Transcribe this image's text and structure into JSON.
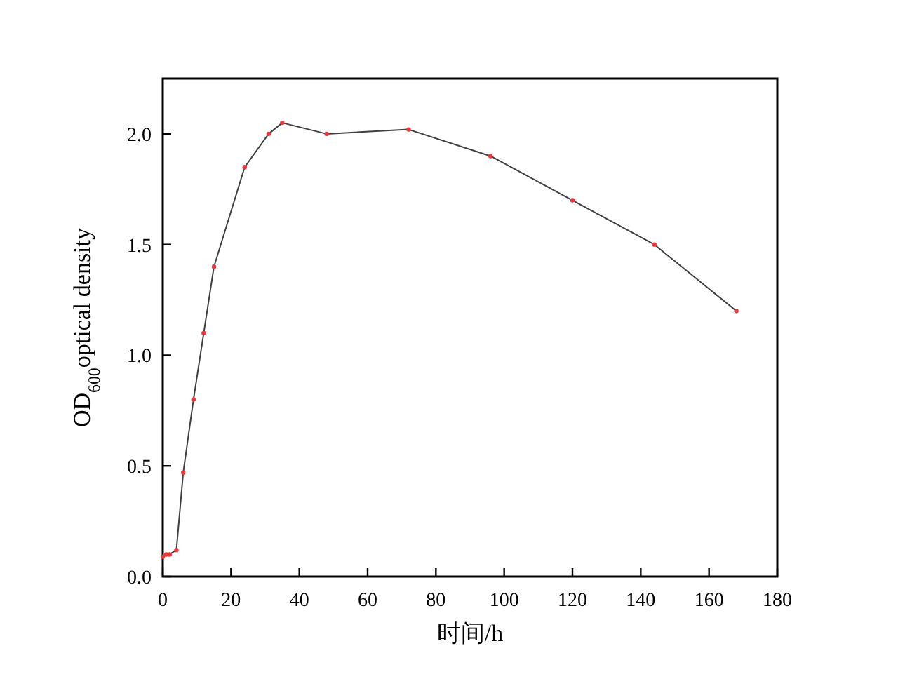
{
  "chart_data": {
    "type": "line",
    "xlabel": "时间/h",
    "ylabel": "OD$_{600}$optical density",
    "x": [
      0,
      1,
      2,
      4,
      6,
      9,
      12,
      15,
      24,
      31,
      35,
      48,
      72,
      96,
      120,
      144,
      168
    ],
    "series": [
      {
        "color": "#404040",
        "values": [
          0.09,
          0.1,
          0.1,
          0.12,
          0.47,
          0.8,
          1.1,
          1.4,
          1.85,
          2.0,
          2.05,
          2.0,
          2.02,
          1.9,
          1.7,
          1.5,
          1.2
        ]
      }
    ],
    "xlim": [
      0,
      180
    ],
    "xticks": [
      0,
      20,
      40,
      60,
      80,
      100,
      120,
      140,
      160,
      180
    ],
    "ylim": [
      0,
      2.25
    ],
    "yticks": [
      {
        "value": 0,
        "label": "0.0"
      },
      {
        "value": 0.5,
        "label": "0.5"
      },
      {
        "value": 1,
        "label": "1.0"
      },
      {
        "value": 1.5,
        "label": "1.5"
      },
      {
        "value": 2,
        "label": "2.0"
      }
    ],
    "marker": "circle",
    "grid": false
  }
}
